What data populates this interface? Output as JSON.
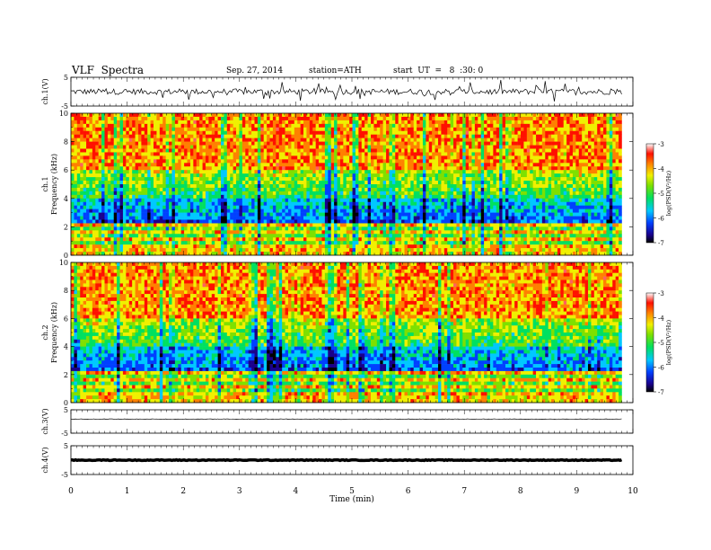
{
  "header": {
    "title": "VLF  Spectra",
    "date": "Sep. 27, 2014",
    "station": "station=ATH",
    "start": "start  UT  =   8  :30: 0"
  },
  "chart_data": [
    {
      "type": "line",
      "panel": "ch1-waveform",
      "ylabel": "ch.1(V)",
      "ylim": [
        -5,
        5
      ],
      "yticks": [
        -5,
        5
      ],
      "xlim": [
        0,
        10
      ],
      "trace_extent_min": [
        0,
        9.8
      ],
      "baseline_v": 0.0,
      "noise_amplitude_v": 1.0
    },
    {
      "type": "heatmap",
      "panel": "ch1-spectrogram",
      "ylabel": "ch.1\nFrequency  (kHz)",
      "ylim": [
        0,
        10
      ],
      "yticks": [
        0,
        2,
        4,
        6,
        8,
        10
      ],
      "xlim": [
        0,
        10
      ],
      "data_extent_min": [
        0,
        9.8
      ],
      "colorbar": {
        "label": "log(PSD(V²/Hz)",
        "range": [
          -7,
          -3
        ],
        "ticks": [
          -3,
          -4,
          -5,
          -6,
          -7
        ]
      }
    },
    {
      "type": "heatmap",
      "panel": "ch2-spectrogram",
      "ylabel": "ch.2\nFrequency  (kHz)",
      "ylim": [
        0,
        10
      ],
      "yticks": [
        0,
        2,
        4,
        6,
        8,
        10
      ],
      "xlim": [
        0,
        10
      ],
      "data_extent_min": [
        0,
        9.8
      ],
      "colorbar": {
        "label": "log(PSD(V²/Hz)",
        "range": [
          -7,
          -3
        ],
        "ticks": [
          -3,
          -4,
          -5,
          -6,
          -7
        ]
      }
    },
    {
      "type": "line",
      "panel": "ch3-waveform",
      "ylabel": "ch.3(V)",
      "ylim": [
        -5,
        5
      ],
      "yticks": [
        -5,
        5
      ],
      "xlim": [
        0,
        10
      ],
      "trace_extent_min": [
        0,
        9.8
      ],
      "baseline_v": 1.0
    },
    {
      "type": "line",
      "panel": "ch4-waveform",
      "ylabel": "ch.4(V)",
      "ylim": [
        -5,
        5
      ],
      "yticks": [
        -5,
        5
      ],
      "xlim": [
        0,
        10
      ],
      "trace_extent_min": [
        0,
        9.8
      ],
      "baseline_v": 0.0
    }
  ],
  "xaxis": {
    "label": "Time  (min)",
    "ticks": [
      0,
      1,
      2,
      3,
      4,
      5,
      6,
      7,
      8,
      9,
      10
    ]
  }
}
